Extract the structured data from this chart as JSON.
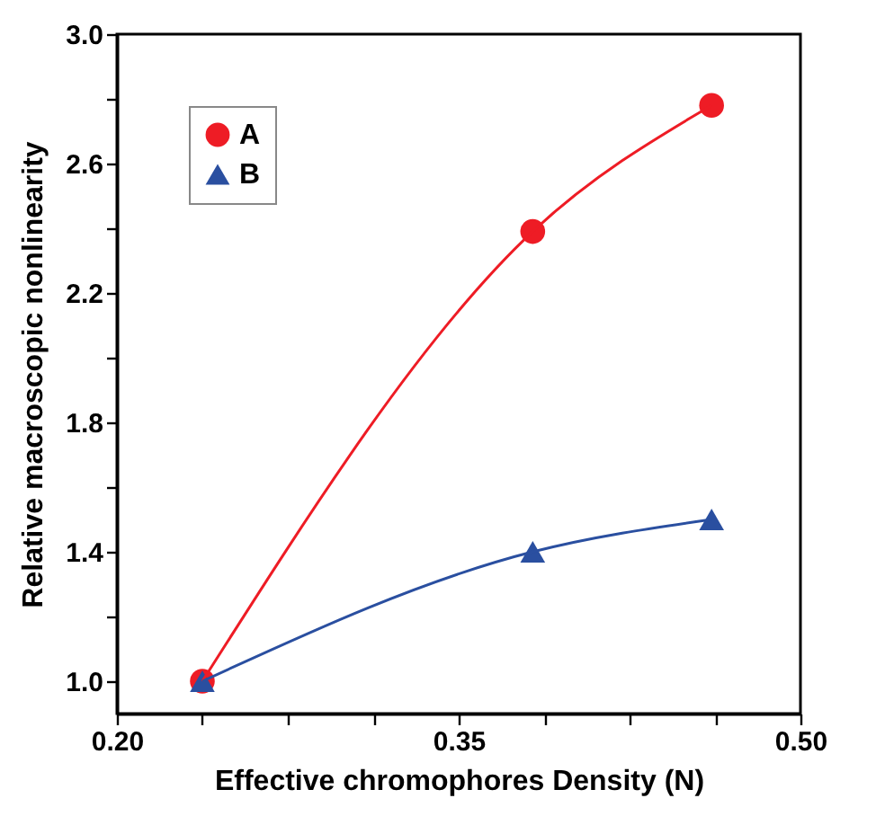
{
  "chart_data": {
    "type": "line",
    "xlabel": "Effective chromophores Density (N)",
    "ylabel": "Relative  macroscopic nonlinearity",
    "x": [
      0.2375,
      0.3825,
      0.461
    ],
    "series": [
      {
        "name": "A",
        "color": "#ee1c25",
        "marker": "circle",
        "values": [
          1.0,
          2.39,
          2.78
        ]
      },
      {
        "name": "B",
        "color": "#2a4fa0",
        "marker": "triangle",
        "values": [
          1.0,
          1.4,
          1.5
        ]
      }
    ],
    "xlim": [
      0.2,
      0.5
    ],
    "xticks": [
      "0.20",
      {
        "value": 0.2375,
        "label": null
      },
      {
        "value": 0.275,
        "label": null
      },
      {
        "value": 0.3125,
        "label": null
      },
      {
        "value": 0.35,
        "label": "0.35"
      },
      {
        "value": 0.3875,
        "label": null
      },
      {
        "value": 0.425,
        "label": null
      },
      {
        "value": 0.4625,
        "label": null
      },
      {
        "value": 0.5,
        "label": "0.50"
      }
    ],
    "ylim": [
      0.9,
      3.0
    ],
    "yticks": [
      {
        "value": 1.0,
        "label": "1.0"
      },
      {
        "value": 1.2,
        "label": null
      },
      1.4,
      {
        "value": 1.6,
        "label": null
      },
      1.8,
      {
        "value": 2.0,
        "label": null
      },
      2.2,
      {
        "value": 2.4,
        "label": null
      },
      2.6,
      {
        "value": 2.8,
        "label": null
      },
      {
        "value": 3.0,
        "label": "3.0"
      }
    ],
    "legend": "top left",
    "grid": false,
    "line_style": "solid"
  }
}
